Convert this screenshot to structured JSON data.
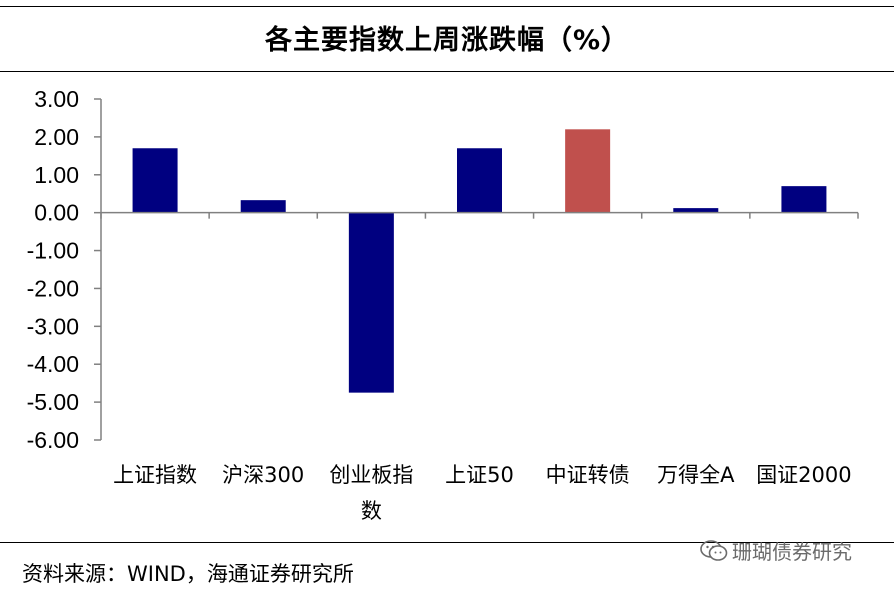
{
  "title": "各主要指数上周涨跌幅（%）",
  "source": "资料来源：WIND，海通证券研究所",
  "watermark": {
    "text": "珊瑚债券研究",
    "icon": "wechat-icon"
  },
  "colors": {
    "bar_default": "#000080",
    "bar_highlight": "#C0504D",
    "axis": "#808080"
  },
  "chart_data": {
    "type": "bar",
    "title": "各主要指数上周涨跌幅（%）",
    "xlabel": "",
    "ylabel": "",
    "ylim": [
      -6.0,
      3.0
    ],
    "yticks": [
      3.0,
      2.0,
      1.0,
      0.0,
      -1.0,
      -2.0,
      -3.0,
      -4.0,
      -5.0,
      -6.0
    ],
    "ytick_labels": [
      "3.00",
      "2.00",
      "1.00",
      "0.00",
      "-1.00",
      "-2.00",
      "-3.00",
      "-4.00",
      "-5.00",
      "-6.00"
    ],
    "grid": false,
    "categories": [
      [
        "上证指数"
      ],
      [
        "沪深300"
      ],
      [
        "创业板指",
        "数"
      ],
      [
        "上证50"
      ],
      [
        "中证转债"
      ],
      [
        "万得全A"
      ],
      [
        "国证2000"
      ]
    ],
    "values": [
      1.7,
      0.33,
      -4.75,
      1.7,
      2.2,
      0.12,
      0.7
    ],
    "highlight_index": 4
  }
}
